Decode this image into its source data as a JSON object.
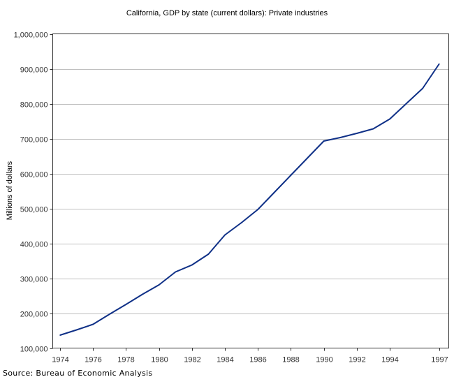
{
  "chart_data": {
    "type": "line",
    "title": "California, GDP by state (current dollars): Private industries",
    "xlabel": "",
    "ylabel": "Millions of dollars",
    "xlim": [
      1974,
      1997
    ],
    "ylim": [
      100000,
      1000000
    ],
    "grid": true,
    "y_ticks": [
      100000,
      200000,
      300000,
      400000,
      500000,
      600000,
      700000,
      800000,
      900000,
      1000000
    ],
    "y_tick_labels": [
      "100,000",
      "200,000",
      "300,000",
      "400,000",
      "500,000",
      "600,000",
      "700,000",
      "800,000",
      "900,000",
      "1,000,000"
    ],
    "x_ticks": [
      1974,
      1976,
      1978,
      1980,
      1982,
      1984,
      1986,
      1988,
      1990,
      1992,
      1994,
      1997
    ],
    "x_tick_labels": [
      "1974",
      "1976",
      "1978",
      "1980",
      "1982",
      "1984",
      "1986",
      "1988",
      "1990",
      "1992",
      "1994",
      "1997"
    ],
    "series": [
      {
        "name": "Private industries",
        "color": "#0f3087",
        "x": [
          1974,
          1975,
          1976,
          1977,
          1978,
          1979,
          1980,
          1981,
          1982,
          1983,
          1984,
          1985,
          1986,
          1987,
          1988,
          1989,
          1990,
          1991,
          1992,
          1993,
          1994,
          1995,
          1996,
          1997
        ],
        "values": [
          137000,
          152000,
          168000,
          197000,
          225000,
          254000,
          281000,
          318000,
          338000,
          369000,
          424000,
          459000,
          497000,
          546000,
          595000,
          644000,
          693000,
          703000,
          715000,
          728000,
          756000,
          800000,
          844000,
          914000
        ]
      }
    ]
  },
  "source": "Source: Bureau of Economic Analysis"
}
